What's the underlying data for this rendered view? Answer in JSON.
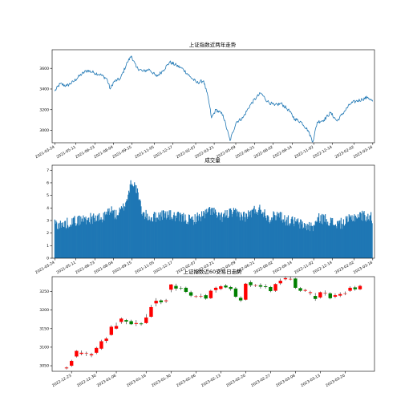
{
  "chart_data": [
    {
      "type": "line",
      "title": "上证指数近两年走势",
      "xlabel": "",
      "ylabel": "",
      "color": "#1f77b4",
      "x_range": [
        "2021-03-18",
        "2023-03-20"
      ],
      "ylim": [
        2880,
        3780
      ],
      "y_ticks": [
        3000,
        3200,
        3400,
        3600
      ],
      "x_tick_labels": [
        "2021-03-24",
        "2021-05-11",
        "2021-06-23",
        "2021-08-04",
        "2021-09-15",
        "2021-11-05",
        "2021-12-17",
        "2022-02-07",
        "2022-03-21",
        "2022-05-09",
        "2022-06-21",
        "2022-08-02",
        "2022-09-14",
        "2022-11-02",
        "2022-12-14",
        "2023-02-02",
        "2023-03-16"
      ],
      "series": [
        {
          "x": [
            "2021-03-24",
            "2021-04-05",
            "2021-04-20",
            "2021-05-05",
            "2021-05-20",
            "2021-06-05",
            "2021-06-20",
            "2021-07-05",
            "2021-07-20",
            "2021-07-28",
            "2021-08-05",
            "2021-08-20",
            "2021-09-05",
            "2021-09-14",
            "2021-09-25",
            "2021-10-10",
            "2021-10-25",
            "2021-11-10",
            "2021-11-25",
            "2021-12-10",
            "2021-12-25",
            "2022-01-10",
            "2022-01-25",
            "2022-02-10",
            "2022-02-25",
            "2022-03-08",
            "2022-03-15",
            "2022-03-25",
            "2022-04-10",
            "2022-04-26",
            "2022-05-10",
            "2022-05-25",
            "2022-06-10",
            "2022-06-25",
            "2022-07-05",
            "2022-07-20",
            "2022-08-05",
            "2022-08-20",
            "2022-09-05",
            "2022-09-20",
            "2022-10-05",
            "2022-10-20",
            "2022-10-31",
            "2022-11-10",
            "2022-11-25",
            "2022-12-10",
            "2022-12-25",
            "2023-01-10",
            "2023-01-25",
            "2023-02-05",
            "2023-02-20",
            "2023-03-05",
            "2023-03-16"
          ],
          "values": [
            3380,
            3450,
            3430,
            3470,
            3530,
            3580,
            3560,
            3540,
            3500,
            3400,
            3470,
            3500,
            3660,
            3720,
            3610,
            3570,
            3590,
            3520,
            3580,
            3660,
            3630,
            3590,
            3520,
            3460,
            3480,
            3300,
            3120,
            3200,
            3150,
            2900,
            3080,
            3120,
            3240,
            3320,
            3360,
            3280,
            3240,
            3260,
            3200,
            3110,
            3080,
            3000,
            2890,
            3080,
            3100,
            3170,
            3090,
            3180,
            3260,
            3280,
            3300,
            3320,
            3280
          ]
        }
      ]
    },
    {
      "type": "bar",
      "title": "成交量",
      "xlabel": "",
      "ylabel": "",
      "color": "#1f77b4",
      "x_range": [
        "2021-03-18",
        "2023-03-20"
      ],
      "ylim": [
        0,
        7.4
      ],
      "y_ticks": [
        0,
        1,
        2,
        3,
        4,
        5,
        6,
        7
      ],
      "x_tick_labels": [
        "2021-03-24",
        "2021-05-11",
        "2021-06-23",
        "2021-08-04",
        "2021-09-15",
        "2021-11-05",
        "2021-12-17",
        "2022-02-07",
        "2022-03-21",
        "2022-05-09",
        "2022-06-21",
        "2022-08-02",
        "2022-09-14",
        "2022-11-02",
        "2022-12-14",
        "2023-02-02",
        "2023-03-16"
      ],
      "series": [
        {
          "x": [
            "2021-03-24",
            "2021-04-10",
            "2021-04-28",
            "2021-05-15",
            "2021-06-01",
            "2021-06-20",
            "2021-07-10",
            "2021-07-28",
            "2021-08-10",
            "2021-08-25",
            "2021-09-05",
            "2021-09-14",
            "2021-09-25",
            "2021-10-10",
            "2021-10-30",
            "2021-11-15",
            "2021-12-01",
            "2021-12-20",
            "2022-01-10",
            "2022-01-28",
            "2022-02-15",
            "2022-03-01",
            "2022-03-15",
            "2022-04-01",
            "2022-04-26",
            "2022-05-15",
            "2022-06-01",
            "2022-06-20",
            "2022-07-05",
            "2022-07-25",
            "2022-08-15",
            "2022-09-01",
            "2022-09-20",
            "2022-10-10",
            "2022-10-31",
            "2022-11-15",
            "2022-12-01",
            "2022-12-20",
            "2023-01-10",
            "2023-02-01",
            "2023-02-20",
            "2023-03-05",
            "2023-03-16"
          ],
          "values": [
            2.8,
            2.6,
            2.9,
            3.0,
            3.1,
            3.2,
            3.1,
            3.9,
            3.4,
            3.9,
            4.8,
            6.2,
            5.5,
            3.5,
            3.2,
            3.4,
            3.5,
            3.3,
            3.2,
            3.0,
            3.3,
            3.5,
            3.9,
            3.2,
            3.6,
            3.5,
            3.3,
            3.8,
            3.9,
            3.2,
            3.5,
            3.0,
            2.9,
            2.6,
            2.5,
            3.2,
            3.1,
            2.7,
            2.8,
            3.3,
            3.4,
            3.3,
            3.2
          ]
        }
      ]
    },
    {
      "type": "candlestick",
      "title": "上证指数近60交易日走势",
      "xlabel": "",
      "ylabel": "",
      "up_color": "#ff0000",
      "down_color": "#008000",
      "ylim": [
        3035,
        3290
      ],
      "y_ticks": [
        3050,
        3100,
        3150,
        3200,
        3250
      ],
      "x_tick_labels": [
        "2022-12-23",
        "2022-12-30",
        "2023-01-06",
        "2023-01-16",
        "2023-01-30",
        "2023-02-06",
        "2023-02-13",
        "2023-02-20",
        "2023-02-27",
        "2023-03-06",
        "2023-03-13",
        "2023-03-20"
      ],
      "candles": [
        {
          "date": "2022-12-22",
          "open": 3043,
          "close": 3045,
          "high": 3048,
          "low": 3040
        },
        {
          "date": "2022-12-23",
          "open": 3050,
          "close": 3063,
          "high": 3066,
          "low": 3047
        },
        {
          "date": "2022-12-26",
          "open": 3075,
          "close": 3090,
          "high": 3092,
          "low": 3072
        },
        {
          "date": "2022-12-27",
          "open": 3082,
          "close": 3085,
          "high": 3091,
          "low": 3078
        },
        {
          "date": "2022-12-28",
          "open": 3084,
          "close": 3084,
          "high": 3088,
          "low": 3076
        },
        {
          "date": "2022-12-29",
          "open": 3078,
          "close": 3081,
          "high": 3085,
          "low": 3073
        },
        {
          "date": "2022-12-30",
          "open": 3085,
          "close": 3098,
          "high": 3101,
          "low": 3081
        },
        {
          "date": "2023-01-03",
          "open": 3096,
          "close": 3116,
          "high": 3120,
          "low": 3093
        },
        {
          "date": "2023-01-04",
          "open": 3117,
          "close": 3123,
          "high": 3127,
          "low": 3111
        },
        {
          "date": "2023-01-05",
          "open": 3133,
          "close": 3155,
          "high": 3159,
          "low": 3131
        },
        {
          "date": "2023-01-06",
          "open": 3150,
          "close": 3157,
          "high": 3166,
          "low": 3148
        },
        {
          "date": "2023-01-09",
          "open": 3168,
          "close": 3177,
          "high": 3180,
          "low": 3163
        },
        {
          "date": "2023-01-10",
          "open": 3173,
          "close": 3169,
          "high": 3176,
          "low": 3162
        },
        {
          "date": "2023-01-11",
          "open": 3170,
          "close": 3162,
          "high": 3174,
          "low": 3160
        },
        {
          "date": "2023-01-12",
          "open": 3163,
          "close": 3165,
          "high": 3173,
          "low": 3157
        },
        {
          "date": "2023-01-13",
          "open": 3164,
          "close": 3162,
          "high": 3167,
          "low": 3158
        },
        {
          "date": "2023-01-16",
          "open": 3165,
          "close": 3180,
          "high": 3189,
          "low": 3163
        },
        {
          "date": "2023-01-17",
          "open": 3182,
          "close": 3208,
          "high": 3214,
          "low": 3180
        },
        {
          "date": "2023-01-18",
          "open": 3218,
          "close": 3225,
          "high": 3232,
          "low": 3210
        },
        {
          "date": "2023-01-19",
          "open": 3226,
          "close": 3221,
          "high": 3229,
          "low": 3216
        },
        {
          "date": "2023-01-20",
          "open": 3224,
          "close": 3226,
          "high": 3230,
          "low": 3219
        },
        {
          "date": "2023-01-30",
          "open": 3255,
          "close": 3269,
          "high": 3270,
          "low": 3248
        },
        {
          "date": "2023-01-31",
          "open": 3265,
          "close": 3258,
          "high": 3271,
          "low": 3252
        },
        {
          "date": "2023-02-01",
          "open": 3259,
          "close": 3258,
          "high": 3264,
          "low": 3254
        },
        {
          "date": "2023-02-02",
          "open": 3260,
          "close": 3249,
          "high": 3263,
          "low": 3246
        },
        {
          "date": "2023-02-03",
          "open": 3248,
          "close": 3239,
          "high": 3252,
          "low": 3235
        },
        {
          "date": "2023-02-06",
          "open": 3236,
          "close": 3237,
          "high": 3240,
          "low": 3233
        },
        {
          "date": "2023-02-07",
          "open": 3237,
          "close": 3238,
          "high": 3244,
          "low": 3232
        },
        {
          "date": "2023-02-08",
          "open": 3240,
          "close": 3231,
          "high": 3243,
          "low": 3228
        },
        {
          "date": "2023-02-09",
          "open": 3232,
          "close": 3252,
          "high": 3255,
          "low": 3230
        },
        {
          "date": "2023-02-10",
          "open": 3254,
          "close": 3260,
          "high": 3263,
          "low": 3247
        },
        {
          "date": "2023-02-13",
          "open": 3257,
          "close": 3264,
          "high": 3267,
          "low": 3254
        },
        {
          "date": "2023-02-14",
          "open": 3266,
          "close": 3261,
          "high": 3270,
          "low": 3259
        },
        {
          "date": "2023-02-15",
          "open": 3262,
          "close": 3257,
          "high": 3265,
          "low": 3252
        },
        {
          "date": "2023-02-16",
          "open": 3258,
          "close": 3236,
          "high": 3262,
          "low": 3233
        },
        {
          "date": "2023-02-17",
          "open": 3233,
          "close": 3226,
          "high": 3237,
          "low": 3222
        },
        {
          "date": "2023-02-20",
          "open": 3228,
          "close": 3271,
          "high": 3273,
          "low": 3226
        },
        {
          "date": "2023-02-21",
          "open": 3275,
          "close": 3267,
          "high": 3280,
          "low": 3262
        },
        {
          "date": "2023-02-22",
          "open": 3266,
          "close": 3267,
          "high": 3270,
          "low": 3262
        },
        {
          "date": "2023-02-23",
          "open": 3267,
          "close": 3263,
          "high": 3272,
          "low": 3258
        },
        {
          "date": "2023-02-24",
          "open": 3264,
          "close": 3262,
          "high": 3270,
          "low": 3258
        },
        {
          "date": "2023-02-27",
          "open": 3262,
          "close": 3251,
          "high": 3265,
          "low": 3248
        },
        {
          "date": "2023-02-28",
          "open": 3252,
          "close": 3270,
          "high": 3272,
          "low": 3249
        },
        {
          "date": "2023-03-01",
          "open": 3272,
          "close": 3279,
          "high": 3285,
          "low": 3268
        },
        {
          "date": "2023-03-02",
          "open": 3283,
          "close": 3286,
          "high": 3291,
          "low": 3280
        },
        {
          "date": "2023-03-03",
          "open": 3284,
          "close": 3284,
          "high": 3290,
          "low": 3280
        },
        {
          "date": "2023-03-06",
          "open": 3285,
          "close": 3260,
          "high": 3287,
          "low": 3257
        },
        {
          "date": "2023-03-07",
          "open": 3259,
          "close": 3252,
          "high": 3262,
          "low": 3249
        },
        {
          "date": "2023-03-08",
          "open": 3252,
          "close": 3254,
          "high": 3257,
          "low": 3249
        },
        {
          "date": "2023-03-09",
          "open": 3246,
          "close": 3248,
          "high": 3252,
          "low": 3240
        },
        {
          "date": "2023-03-10",
          "open": 3238,
          "close": 3230,
          "high": 3246,
          "low": 3225
        },
        {
          "date": "2023-03-13",
          "open": 3234,
          "close": 3248,
          "high": 3250,
          "low": 3231
        },
        {
          "date": "2023-03-14",
          "open": 3246,
          "close": 3246,
          "high": 3253,
          "low": 3239
        },
        {
          "date": "2023-03-15",
          "open": 3245,
          "close": 3232,
          "high": 3248,
          "low": 3229
        },
        {
          "date": "2023-03-16",
          "open": 3236,
          "close": 3240,
          "high": 3245,
          "low": 3232
        },
        {
          "date": "2023-03-17",
          "open": 3239,
          "close": 3243,
          "high": 3248,
          "low": 3235
        },
        {
          "date": "2023-03-20",
          "open": 3245,
          "close": 3245,
          "high": 3250,
          "low": 3240
        },
        {
          "date": "2023-03-21",
          "open": 3252,
          "close": 3260,
          "high": 3264,
          "low": 3249
        },
        {
          "date": "2023-03-22",
          "open": 3261,
          "close": 3256,
          "high": 3265,
          "low": 3252
        },
        {
          "date": "2023-03-23",
          "open": 3256,
          "close": 3265,
          "high": 3268,
          "low": 3254
        }
      ]
    }
  ]
}
